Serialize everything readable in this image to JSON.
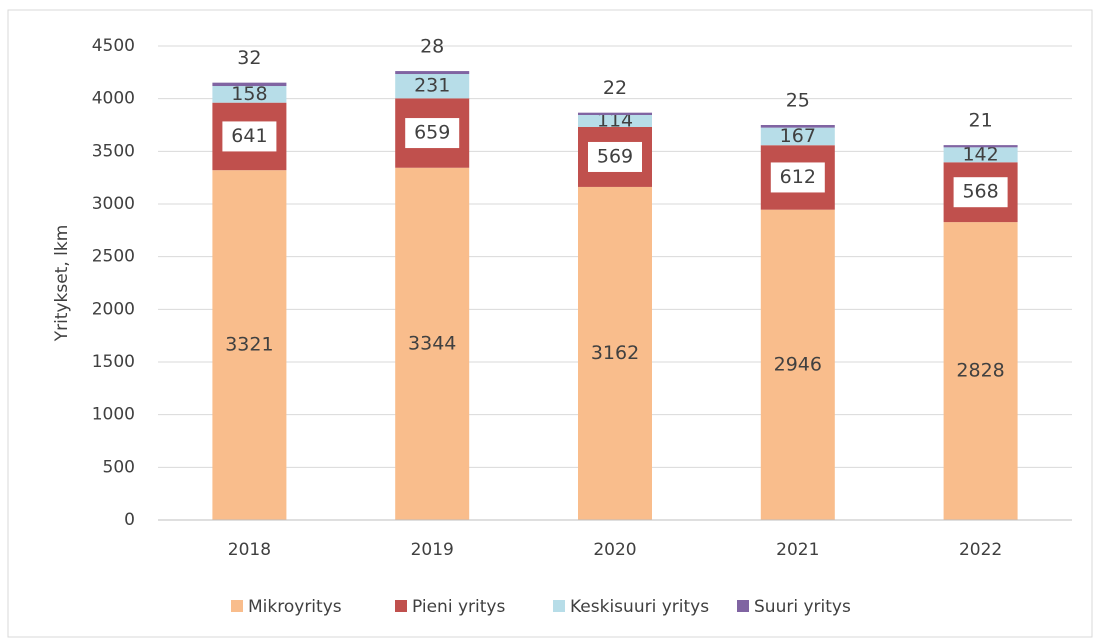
{
  "chart_data": {
    "type": "stacked_bar",
    "categories": [
      "2018",
      "2019",
      "2020",
      "2021",
      "2022"
    ],
    "series": [
      {
        "name": "Mikroyritys",
        "color": "#f9bd8c",
        "values": [
          3321,
          3344,
          3162,
          2946,
          2828
        ]
      },
      {
        "name": "Pieni yritys",
        "color": "#c0504d",
        "values": [
          641,
          659,
          569,
          612,
          568
        ]
      },
      {
        "name": "Keskisuuri yritys",
        "color": "#b7dde8",
        "values": [
          158,
          231,
          114,
          167,
          142
        ]
      },
      {
        "name": "Suuri yritys",
        "color": "#8064a2",
        "values": [
          32,
          28,
          22,
          25,
          21
        ]
      }
    ],
    "y_label": "Yritykset, lkm",
    "ylim": [
      0,
      4500
    ],
    "yticks": [
      0,
      500,
      1000,
      1500,
      2000,
      2500,
      3000,
      3500,
      4000,
      4500
    ],
    "grid": true,
    "legend": "bottom"
  }
}
